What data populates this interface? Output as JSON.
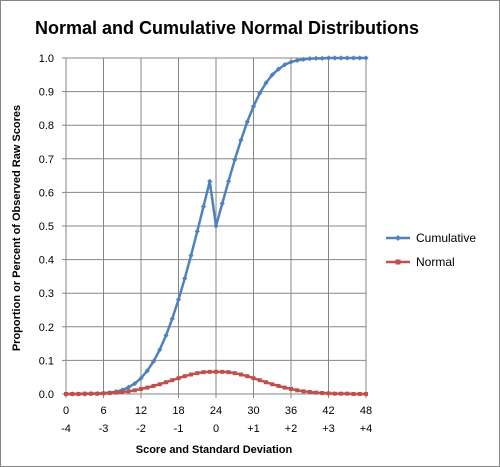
{
  "chart_data": {
    "type": "line",
    "title": "Normal and Cumulative Normal Distributions",
    "xlabel": "Score and Standard Deviation",
    "ylabel": "Proportion or Percent of Observed Raw Scores",
    "xlim": [
      0,
      48
    ],
    "ylim": [
      0,
      1.0
    ],
    "grid": true,
    "legend_position": "right",
    "x_ticks": [
      0,
      6,
      12,
      18,
      24,
      30,
      36,
      42,
      48
    ],
    "x_tick_labels": [
      "0",
      "6",
      "12",
      "18",
      "24",
      "30",
      "36",
      "42",
      "48"
    ],
    "x_tick_labels_secondary": [
      "-4",
      "-3",
      "-2",
      "-1",
      "0",
      "+1",
      "+2",
      "+3",
      "+4"
    ],
    "y_ticks": [
      0,
      0.1,
      0.2,
      0.3,
      0.4,
      0.5,
      0.6,
      0.7,
      0.8,
      0.9,
      1.0
    ],
    "y_tick_labels": [
      "0.0",
      "0.1",
      "0.2",
      "0.3",
      "0.4",
      "0.5",
      "0.6",
      "0.7",
      "0.8",
      "0.9",
      "1.0"
    ],
    "x": [
      0,
      1,
      2,
      3,
      4,
      5,
      6,
      7,
      8,
      9,
      10,
      11,
      12,
      13,
      14,
      15,
      16,
      17,
      18,
      19,
      20,
      21,
      22,
      23,
      24,
      25,
      26,
      27,
      28,
      29,
      30,
      31,
      32,
      33,
      34,
      35,
      36,
      37,
      38,
      39,
      40,
      41,
      42,
      43,
      44,
      45,
      46,
      47,
      48
    ],
    "series": [
      {
        "name": "Cumulative",
        "color": "#4F81BD",
        "marker": "diamond",
        "values": [
          0.0,
          0.0,
          0.0,
          0.0,
          0.001,
          0.001,
          0.002,
          0.004,
          0.007,
          0.012,
          0.02,
          0.031,
          0.047,
          0.069,
          0.097,
          0.132,
          0.174,
          0.224,
          0.281,
          0.344,
          0.412,
          0.484,
          0.558,
          0.633,
          0.5,
          0.567,
          0.633,
          0.697,
          0.756,
          0.81,
          0.856,
          0.895,
          0.926,
          0.95,
          0.967,
          0.98,
          0.988,
          0.993,
          0.996,
          0.998,
          0.999,
          0.999,
          1.0,
          1.0,
          1.0,
          1.0,
          1.0,
          1.0,
          1.0
        ]
      },
      {
        "name": "Normal",
        "color": "#C0504D",
        "marker": "square",
        "values": [
          0.0,
          0.0,
          0.0,
          0.001,
          0.001,
          0.001,
          0.002,
          0.003,
          0.004,
          0.006,
          0.008,
          0.011,
          0.015,
          0.019,
          0.024,
          0.029,
          0.035,
          0.041,
          0.047,
          0.053,
          0.058,
          0.062,
          0.065,
          0.066,
          0.066,
          0.066,
          0.065,
          0.062,
          0.058,
          0.053,
          0.047,
          0.041,
          0.035,
          0.029,
          0.024,
          0.019,
          0.015,
          0.011,
          0.008,
          0.006,
          0.004,
          0.003,
          0.002,
          0.001,
          0.001,
          0.001,
          0.0,
          0.0,
          0.0
        ]
      }
    ]
  }
}
